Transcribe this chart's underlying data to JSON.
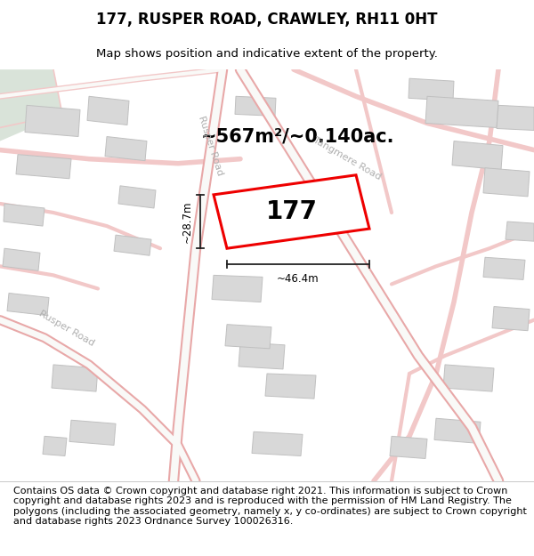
{
  "title": "177, RUSPER ROAD, CRAWLEY, RH11 0HT",
  "subtitle": "Map shows position and indicative extent of the property.",
  "area_label": "~567m²/~0.140ac.",
  "property_number": "177",
  "dim_width": "~46.4m",
  "dim_height": "~28.7m",
  "footer_text": "Contains OS data © Crown copyright and database right 2021. This information is subject to Crown copyright and database rights 2023 and is reproduced with the permission of HM Land Registry. The polygons (including the associated geometry, namely x, y co-ordinates) are subject to Crown copyright and database rights 2023 Ordnance Survey 100026316.",
  "map_bg": "#f9f9f7",
  "road_pink_light": "#f2c8c8",
  "road_pink_mid": "#e8a8a8",
  "building_fill": "#d8d8d8",
  "building_edge": "#c0c0c0",
  "green_fill": "#d0ddd0",
  "property_fill": "#ffffff",
  "property_edge": "#ee0000",
  "road_label_color": "#b0b0b0",
  "title_fontsize": 12,
  "subtitle_fontsize": 9.5,
  "footer_fontsize": 8,
  "area_fontsize": 15,
  "number_fontsize": 20
}
